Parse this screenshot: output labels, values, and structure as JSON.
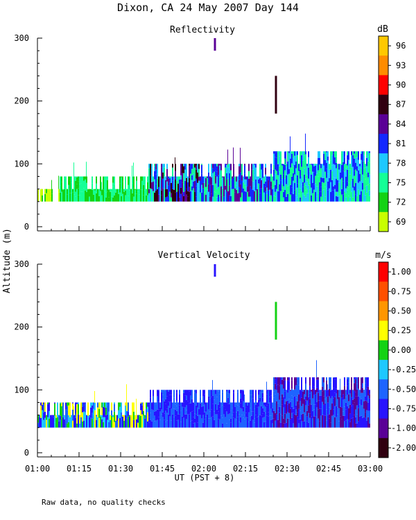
{
  "figure": {
    "title": "Dixon, CA 24 May 2007  Day 144",
    "ylabel": "Altitude (m)",
    "xlabel": "UT  (PST + 8)",
    "footnote": "Raw data, no quality checks",
    "x_ticks": [
      "01:00",
      "01:15",
      "01:30",
      "01:45",
      "02:00",
      "02:15",
      "02:30",
      "02:45",
      "03:00"
    ]
  },
  "chart_data": [
    {
      "type": "heatmap",
      "title": "Reflectivity",
      "units": "dB",
      "xlabel": "UT  (PST + 8)",
      "ylabel": "Altitude (m)",
      "xlim": [
        "01:00",
        "03:00"
      ],
      "ylim": [
        0,
        300
      ],
      "y_ticks": [
        0,
        100,
        200,
        300
      ],
      "colorbar": {
        "labels": [
          "96",
          "93",
          "90",
          "87",
          "84",
          "81",
          "78",
          "75",
          "72",
          "69"
        ],
        "colors": [
          "#ffc800",
          "#ff8c00",
          "#ff0000",
          "#300010",
          "#5a0096",
          "#1428ff",
          "#1ec8ff",
          "#14ff96",
          "#14d214",
          "#c8ff00"
        ]
      },
      "features": [
        {
          "from": "01:00",
          "to": "01:08",
          "base": 40,
          "top": 60,
          "value_range": [
            69,
            72
          ]
        },
        {
          "from": "01:08",
          "to": "01:40",
          "base": 40,
          "top": 80,
          "value_range": [
            72,
            75
          ]
        },
        {
          "from": "01:40",
          "to": "02:00",
          "base": 40,
          "top": 100,
          "value_range": [
            75,
            87
          ]
        },
        {
          "from": "02:00",
          "to": "02:25",
          "base": 40,
          "top": 100,
          "value_range": [
            75,
            84
          ]
        },
        {
          "from": "02:25",
          "to": "03:00",
          "base": 40,
          "top": 120,
          "value_range": [
            75,
            81
          ]
        },
        {
          "time": "02:04",
          "base": 280,
          "top": 300,
          "value": 84,
          "note": "isolated echo"
        },
        {
          "time": "02:26",
          "base": 180,
          "top": 240,
          "value": 87,
          "note": "isolated echo"
        }
      ]
    },
    {
      "type": "heatmap",
      "title": "Vertical Velocity",
      "units": "m/s",
      "xlabel": "UT  (PST + 8)",
      "ylabel": "Altitude (m)",
      "xlim": [
        "01:00",
        "03:00"
      ],
      "ylim": [
        0,
        300
      ],
      "y_ticks": [
        0,
        100,
        200,
        300
      ],
      "colorbar": {
        "labels": [
          "1.00",
          "0.75",
          "0.50",
          "0.25",
          "0.00",
          "-0.25",
          "-0.50",
          "-0.75",
          "-1.00",
          "-2.00"
        ],
        "colors": [
          "#ff0000",
          "#ff5000",
          "#ff9600",
          "#ffff00",
          "#14d214",
          "#1ec8ff",
          "#1e64ff",
          "#2814ff",
          "#5a0096",
          "#300010"
        ]
      },
      "features": [
        {
          "from": "01:00",
          "to": "01:40",
          "base": 40,
          "top": 80,
          "value_range": [
            -0.75,
            0.25
          ]
        },
        {
          "from": "01:40",
          "to": "02:25",
          "base": 40,
          "top": 100,
          "value_range": [
            -0.75,
            -0.5
          ]
        },
        {
          "from": "02:25",
          "to": "03:00",
          "base": 40,
          "top": 120,
          "value_range": [
            -1.0,
            -0.5
          ]
        },
        {
          "time": "02:04",
          "base": 280,
          "top": 300,
          "value": -0.75,
          "note": "isolated echo"
        },
        {
          "time": "02:26",
          "base": 180,
          "top": 240,
          "value": 0.0,
          "note": "isolated echo"
        }
      ]
    }
  ]
}
